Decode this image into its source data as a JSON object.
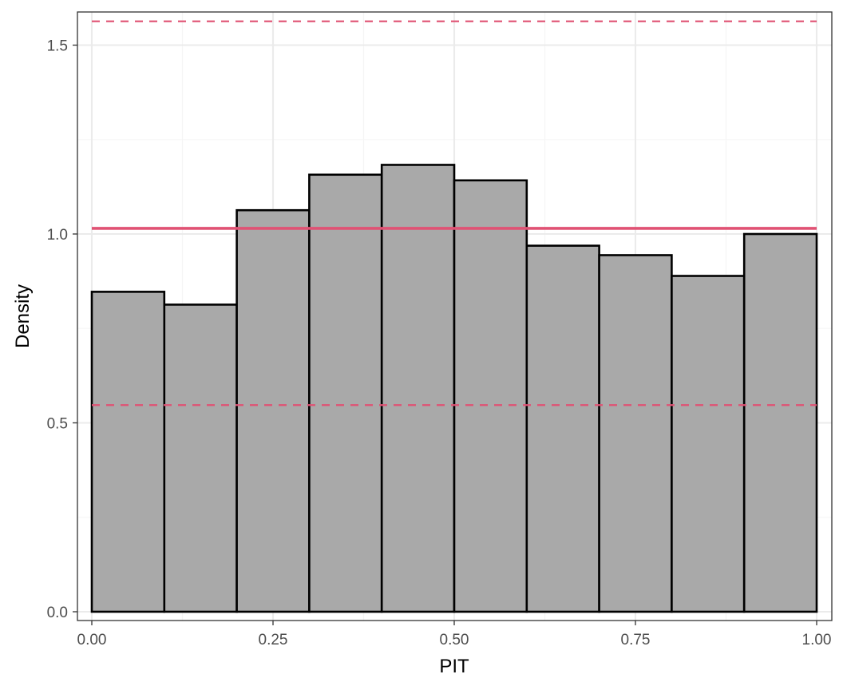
{
  "chart_data": {
    "type": "bar",
    "xlabel": "PIT",
    "ylabel": "Density",
    "xlim": [
      0,
      1
    ],
    "ylim": [
      0,
      1.6
    ],
    "grid": true,
    "x_ticks": [
      0,
      0.25,
      0.5,
      0.75,
      1
    ],
    "x_tick_labels": [
      "0.00",
      "0.25",
      "0.50",
      "0.75",
      "1.00"
    ],
    "y_ticks": [
      0,
      0.5,
      1,
      1.5
    ],
    "y_tick_labels": [
      "0.0",
      "0.5",
      "1.0",
      "1.5"
    ],
    "bins": [
      {
        "x0": 0.0,
        "x1": 0.1,
        "density": 0.847
      },
      {
        "x0": 0.1,
        "x1": 0.2,
        "density": 0.813
      },
      {
        "x0": 0.2,
        "x1": 0.3,
        "density": 1.063
      },
      {
        "x0": 0.3,
        "x1": 0.4,
        "density": 1.157
      },
      {
        "x0": 0.4,
        "x1": 0.5,
        "density": 1.183
      },
      {
        "x0": 0.5,
        "x1": 0.6,
        "density": 1.142
      },
      {
        "x0": 0.6,
        "x1": 0.7,
        "density": 0.969
      },
      {
        "x0": 0.7,
        "x1": 0.8,
        "density": 0.944
      },
      {
        "x0": 0.8,
        "x1": 0.9,
        "density": 0.889
      },
      {
        "x0": 0.9,
        "x1": 1.0,
        "density": 1.0
      }
    ],
    "reference_lines": {
      "mean": 1.015,
      "lower": 0.547,
      "upper": 1.563
    },
    "colors": {
      "bar_fill": "#a9a9a9",
      "bar_stroke": "#000000",
      "reference_line": "#e05274",
      "grid_major": "#ebebeb",
      "grid_minor": "#f5f5f5",
      "panel_border": "#333333"
    }
  }
}
